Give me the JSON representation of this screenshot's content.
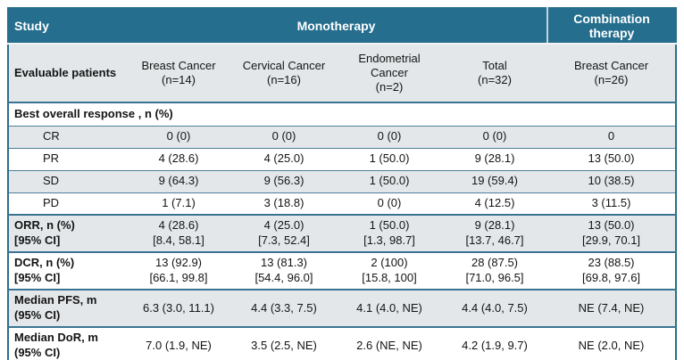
{
  "colors": {
    "header_bg": "#256E8E",
    "header_text": "#FFFFFF",
    "stripe_bg": "#E3E7EA",
    "row_border": "#4E7E9C",
    "outer_border": "#2B6E8D"
  },
  "header": {
    "study": "Study",
    "monotherapy": "Monotherapy",
    "combination": "Combination\ntherapy",
    "evaluable": "Evaluable patients",
    "columns": [
      "Breast Cancer\n(n=14)",
      "Cervical Cancer\n(n=16)",
      "Endometrial\nCancer\n(n=2)",
      "Total\n(n=32)",
      "Breast Cancer\n(n=26)"
    ]
  },
  "body": {
    "rows": [
      {
        "type": "section",
        "label": "Best overall response , n (%)",
        "thick": true
      },
      {
        "type": "data",
        "label": "CR",
        "indent": true,
        "stripe": true,
        "values": [
          "0 (0)",
          "0 (0)",
          "0 (0)",
          "0 (0)",
          "0"
        ]
      },
      {
        "type": "data",
        "label": "PR",
        "indent": true,
        "values": [
          "4 (28.6)",
          "4 (25.0)",
          "1 (50.0)",
          "9 (28.1)",
          "13 (50.0)"
        ]
      },
      {
        "type": "data",
        "label": "SD",
        "indent": true,
        "stripe": true,
        "values": [
          "9 (64.3)",
          "9 (56.3)",
          "1 (50.0)",
          "19 (59.4)",
          "10 (38.5)"
        ]
      },
      {
        "type": "data",
        "label": "PD",
        "indent": true,
        "values": [
          "1 (7.1)",
          "3 (18.8)",
          "0 (0)",
          "4 (12.5)",
          "3 (11.5)"
        ]
      },
      {
        "type": "data",
        "label": [
          "ORR, n (%)",
          "[95% CI]"
        ],
        "bold": true,
        "stripe": true,
        "thick": true,
        "tall": true,
        "values": [
          [
            "4 (28.6)",
            "[8.4, 58.1]"
          ],
          [
            "4 (25.0)",
            "[7.3, 52.4]"
          ],
          [
            "1 (50.0)",
            "[1.3, 98.7]"
          ],
          [
            "9 (28.1)",
            "[13.7, 46.7]"
          ],
          [
            "13 (50.0)",
            "[29.9, 70.1]"
          ]
        ]
      },
      {
        "type": "data",
        "label": [
          "DCR, n (%)",
          "[95% CI]"
        ],
        "bold": true,
        "thick": true,
        "tall": true,
        "values": [
          [
            "13 (92.9)",
            "[66.1, 99.8]"
          ],
          [
            "13 (81.3)",
            "[54.4, 96.0]"
          ],
          [
            "2 (100)",
            "[15.8, 100]"
          ],
          [
            "28 (87.5)",
            "[71.0, 96.5]"
          ],
          [
            "23 (88.5)",
            "[69.8, 97.6]"
          ]
        ]
      },
      {
        "type": "data",
        "label": [
          "Median PFS, m",
          "(95% CI)"
        ],
        "bold": true,
        "stripe": true,
        "thick": true,
        "tall": true,
        "values": [
          "6.3 (3.0, 11.1)",
          "4.4 (3.3, 7.5)",
          "4.1 (4.0, NE)",
          "4.4 (4.0, 7.5)",
          "NE (7.4, NE)"
        ]
      },
      {
        "type": "data",
        "label": [
          "Median DoR, m",
          "(95% CI)"
        ],
        "bold": true,
        "thick": true,
        "tall": true,
        "values": [
          "7.0 (1.9, NE)",
          "3.5 (2.5, NE)",
          "2.6 (NE, NE)",
          "4.2 (1.9, 9.7)",
          "NE (2.0, NE)"
        ]
      }
    ]
  }
}
